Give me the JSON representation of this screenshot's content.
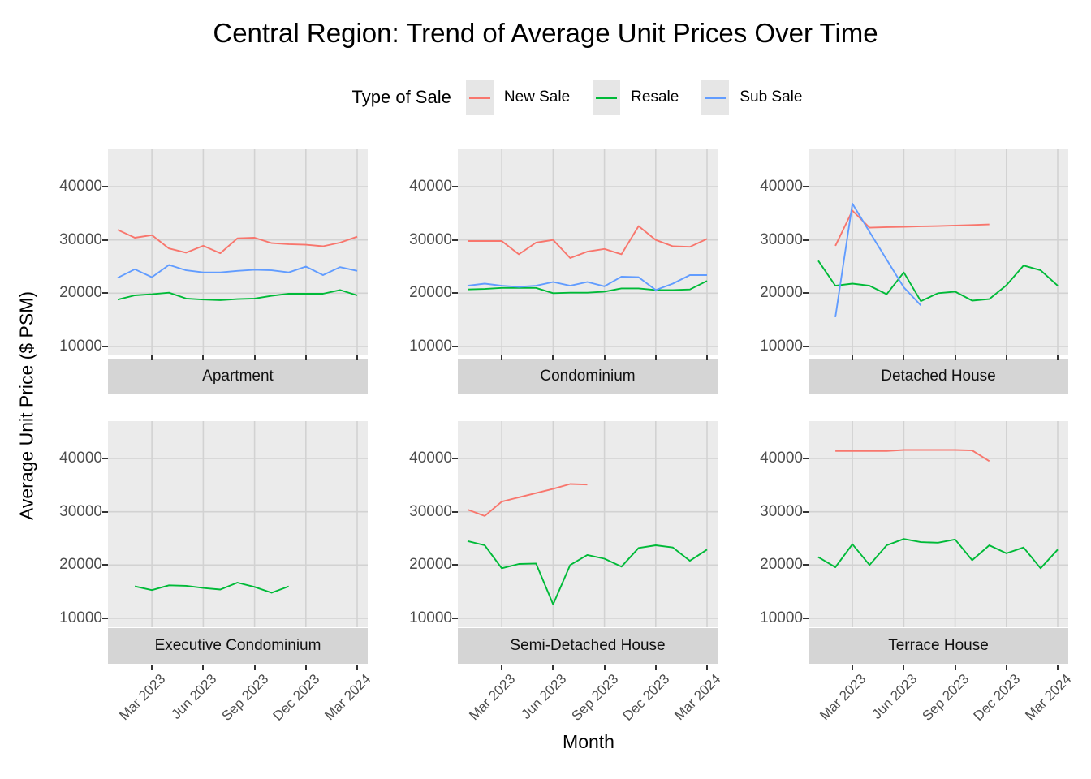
{
  "title": "Central Region: Trend of Average Unit Prices Over Time",
  "chart_data": {
    "type": "line",
    "title": "Central Region: Trend of Average Unit Prices Over Time",
    "xlabel": "Month",
    "ylabel": "Average Unit Price ($ PSM)",
    "legend_title": "Type of Sale",
    "legend_position": "top",
    "grid": "major",
    "x": [
      "Jan 2023",
      "Feb 2023",
      "Mar 2023",
      "Apr 2023",
      "May 2023",
      "Jun 2023",
      "Jul 2023",
      "Aug 2023",
      "Sep 2023",
      "Oct 2023",
      "Nov 2023",
      "Dec 2023",
      "Jan 2024",
      "Feb 2024",
      "Mar 2024"
    ],
    "x_tick_labels": [
      "Mar 2023",
      "Jun 2023",
      "Sep 2023",
      "Dec 2023",
      "Mar 2024"
    ],
    "x_tick_positions": [
      2,
      5,
      8,
      11,
      14
    ],
    "y_ticks": [
      10000,
      20000,
      30000,
      40000
    ],
    "ylim": [
      8300,
      47000
    ],
    "series_meta": [
      {
        "key": "new_sale",
        "name": "New Sale",
        "color": "#F8766D"
      },
      {
        "key": "resale",
        "name": "Resale",
        "color": "#00BA38"
      },
      {
        "key": "sub_sale",
        "name": "Sub Sale",
        "color": "#619CFF"
      }
    ],
    "facets": [
      {
        "label": "Apartment",
        "series": {
          "new_sale": [
            31900,
            30400,
            30900,
            28400,
            27600,
            28900,
            27500,
            30300,
            30400,
            29400,
            29200,
            29100,
            28800,
            29500,
            30600
          ],
          "resale": [
            18800,
            19600,
            19800,
            20100,
            19000,
            18800,
            18700,
            18900,
            19000,
            19500,
            19900,
            19900,
            19900,
            20600,
            19600
          ],
          "sub_sale": [
            22900,
            24500,
            23000,
            25300,
            24300,
            23900,
            23900,
            24200,
            24400,
            24300,
            23900,
            25000,
            23400,
            24900,
            24200
          ]
        }
      },
      {
        "label": "Condominium",
        "series": {
          "new_sale": [
            29800,
            29800,
            29800,
            27300,
            29500,
            30000,
            26600,
            27800,
            28300,
            27300,
            32600,
            30000,
            28800,
            28700,
            30200
          ],
          "resale": [
            20700,
            20800,
            21000,
            21000,
            21000,
            20000,
            20100,
            20100,
            20300,
            20900,
            20900,
            20600,
            20600,
            20700,
            22300
          ],
          "sub_sale": [
            21400,
            21800,
            21400,
            21200,
            21400,
            22100,
            21400,
            22100,
            21300,
            23100,
            23000,
            20600,
            21800,
            23400,
            23400
          ]
        }
      },
      {
        "label": "Detached House",
        "series": {
          "new_sale": [
            null,
            28900,
            35500,
            32300,
            32400,
            32450,
            32550,
            32600,
            32700,
            32800,
            32900,
            null,
            null,
            null,
            null
          ],
          "resale": [
            26100,
            21400,
            21800,
            21400,
            19800,
            23900,
            18500,
            20000,
            20300,
            18600,
            18900,
            21500,
            25200,
            24300,
            21400
          ],
          "sub_sale": [
            null,
            15500,
            36800,
            31500,
            26300,
            21100,
            17700,
            null,
            null,
            null,
            null,
            null,
            null,
            null,
            null
          ]
        }
      },
      {
        "label": "Executive Condominium",
        "series": {
          "new_sale": [
            null,
            null,
            null,
            null,
            null,
            null,
            null,
            null,
            null,
            null,
            null,
            null,
            null,
            null,
            null
          ],
          "resale": [
            null,
            16000,
            15300,
            16200,
            16100,
            15700,
            15400,
            16700,
            15900,
            14800,
            16000,
            null,
            null,
            null,
            null
          ],
          "sub_sale": [
            null,
            null,
            null,
            null,
            null,
            null,
            null,
            null,
            null,
            null,
            null,
            null,
            null,
            null,
            null
          ]
        }
      },
      {
        "label": "Semi-Detached House",
        "series": {
          "new_sale": [
            30400,
            29200,
            31900,
            32700,
            33500,
            34300,
            35200,
            35100,
            null,
            null,
            null,
            null,
            null,
            null,
            null
          ],
          "resale": [
            24500,
            23700,
            19400,
            20200,
            20300,
            12600,
            20000,
            21900,
            21200,
            19700,
            23200,
            23700,
            23300,
            20800,
            22900
          ],
          "sub_sale": [
            null,
            null,
            null,
            null,
            null,
            null,
            null,
            null,
            null,
            null,
            null,
            null,
            null,
            null,
            null
          ]
        }
      },
      {
        "label": "Terrace House",
        "series": {
          "new_sale": [
            null,
            41400,
            41400,
            41400,
            41400,
            41600,
            41600,
            41600,
            41600,
            41500,
            39500,
            null,
            null,
            null,
            null
          ],
          "resale": [
            21500,
            19600,
            23900,
            20000,
            23700,
            24900,
            24300,
            24200,
            24800,
            20900,
            23700,
            22200,
            23300,
            19400,
            22900
          ],
          "sub_sale": [
            null,
            null,
            null,
            null,
            null,
            null,
            null,
            null,
            null,
            null,
            null,
            null,
            null,
            null,
            null
          ]
        }
      }
    ]
  }
}
